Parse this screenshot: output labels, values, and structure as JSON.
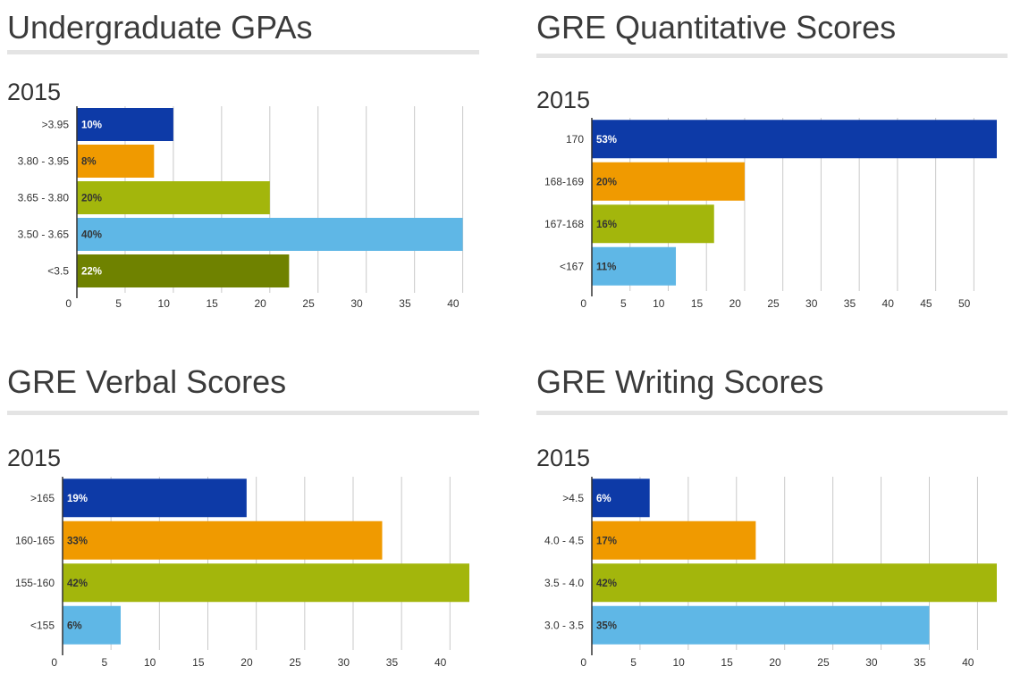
{
  "colors": [
    "#0d3aa7",
    "#f09a00",
    "#a3b60c",
    "#5fb7e6",
    "#6f8200"
  ],
  "label_colors": [
    "#ffffff",
    "#333333",
    "#333333",
    "#333333",
    "#ffffff"
  ],
  "chart_data": [
    {
      "type": "bar",
      "orientation": "horizontal",
      "title": "Undergraduate GPAs",
      "subtitle": "2015",
      "categories": [
        ">3.95",
        "3.80 - 3.95",
        "3.65 - 3.80",
        "3.50 - 3.65",
        "<3.5"
      ],
      "values": [
        10,
        8,
        20,
        40,
        22
      ],
      "data_labels": [
        "10%",
        "8%",
        "20%",
        "40%",
        "22%"
      ],
      "xlim": [
        0,
        40.5
      ],
      "ticks": [
        0,
        5,
        10,
        15,
        20,
        25,
        30,
        35,
        40
      ],
      "grid": true
    },
    {
      "type": "bar",
      "orientation": "horizontal",
      "title": "GRE Quantitative Scores",
      "subtitle": "2015",
      "categories": [
        "170",
        "168-169",
        "167-168",
        "<167"
      ],
      "values": [
        53,
        20,
        16,
        11
      ],
      "data_labels": [
        "53%",
        "20%",
        "16%",
        "11%"
      ],
      "xlim": [
        0,
        53
      ],
      "ticks": [
        0,
        5,
        10,
        15,
        20,
        25,
        30,
        35,
        40,
        45,
        50
      ],
      "grid": true
    },
    {
      "type": "bar",
      "orientation": "horizontal",
      "title": "GRE Verbal Scores",
      "subtitle": "2015",
      "categories": [
        ">165",
        "160-165",
        "155-160",
        "<155"
      ],
      "values": [
        19,
        33,
        42,
        6
      ],
      "data_labels": [
        "19%",
        "33%",
        "42%",
        "6%"
      ],
      "xlim": [
        0,
        42
      ],
      "ticks": [
        0,
        5,
        10,
        15,
        20,
        25,
        30,
        35,
        40
      ],
      "grid": true
    },
    {
      "type": "bar",
      "orientation": "horizontal",
      "title": "GRE Writing Scores",
      "subtitle": "2015",
      "categories": [
        ">4.5",
        "4.0 - 4.5",
        "3.5 - 4.0",
        "3.0 - 3.5"
      ],
      "values": [
        6,
        17,
        42,
        35
      ],
      "data_labels": [
        "6%",
        "17%",
        "42%",
        "35%"
      ],
      "xlim": [
        0,
        42
      ],
      "ticks": [
        0,
        5,
        10,
        15,
        20,
        25,
        30,
        35,
        40
      ],
      "grid": true
    }
  ]
}
